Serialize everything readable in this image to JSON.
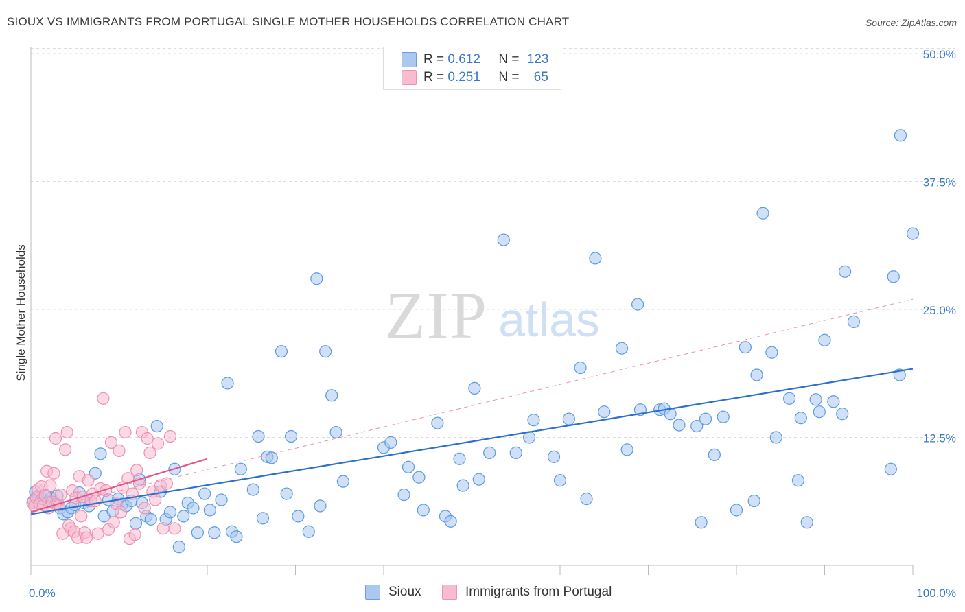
{
  "title": "SIOUX VS IMMIGRANTS FROM PORTUGAL SINGLE MOTHER HOUSEHOLDS CORRELATION CHART",
  "source": "Source: ZipAtlas.com",
  "watermark": {
    "zip": "ZIP",
    "atlas": "atlas"
  },
  "legend": {
    "rows": [
      {
        "r_label": "R = ",
        "r_value": "0.612",
        "n_label": "N = ",
        "n_value": "123",
        "color": "#aac8f0"
      },
      {
        "r_label": "R = ",
        "r_value": "0.251",
        "n_label": "N = ",
        "n_value": "65",
        "color": "#f8bccf"
      }
    ]
  },
  "bottom_legend": [
    {
      "label": "Sioux",
      "color": "#aac8f0"
    },
    {
      "label": "Immigrants from Portugal",
      "color": "#f8bccf"
    }
  ],
  "chart_data": {
    "type": "scatter",
    "title": "SIOUX VS IMMIGRANTS FROM PORTUGAL SINGLE MOTHER HOUSEHOLDS CORRELATION CHART",
    "xlabel": "",
    "ylabel": "Single Mother Households",
    "xlim": [
      0,
      100
    ],
    "ylim": [
      0,
      50
    ],
    "x_tick_labels": [
      "0.0%",
      "100.0%"
    ],
    "y_ticks": [
      12.5,
      25.0,
      37.5,
      50.0
    ],
    "y_tick_labels": [
      "12.5%",
      "25.0%",
      "37.5%",
      "50.0%"
    ],
    "grid": true,
    "legend_position": "top-center",
    "series": [
      {
        "name": "Sioux",
        "color": "#5b9be0",
        "fill": "#aac8f0",
        "trend": {
          "x": [
            0,
            100
          ],
          "y": [
            5.0,
            19.2
          ],
          "style": "solid",
          "color": "#2b6fcf"
        },
        "points": [
          [
            0.3,
            6.3
          ],
          [
            0.5,
            7.2
          ],
          [
            0.8,
            6.7
          ],
          [
            1.0,
            6.0
          ],
          [
            1.3,
            6.5
          ],
          [
            1.6,
            6.9
          ],
          [
            2.0,
            6.2
          ],
          [
            2.3,
            6.6
          ],
          [
            2.8,
            6.0
          ],
          [
            3.0,
            6.8
          ],
          [
            3.3,
            5.6
          ],
          [
            3.7,
            5.0
          ],
          [
            4.2,
            5.2
          ],
          [
            4.6,
            5.6
          ],
          [
            5.0,
            5.9
          ],
          [
            5.5,
            7.1
          ],
          [
            6.0,
            6.1
          ],
          [
            6.6,
            5.8
          ],
          [
            7.3,
            9.0
          ],
          [
            7.9,
            10.9
          ],
          [
            8.3,
            4.8
          ],
          [
            8.8,
            6.4
          ],
          [
            9.3,
            5.3
          ],
          [
            9.9,
            6.5
          ],
          [
            10.4,
            6.0
          ],
          [
            10.8,
            5.8
          ],
          [
            11.4,
            6.3
          ],
          [
            11.9,
            4.1
          ],
          [
            12.3,
            8.4
          ],
          [
            12.6,
            6.1
          ],
          [
            13.1,
            4.8
          ],
          [
            13.6,
            4.5
          ],
          [
            14.3,
            13.6
          ],
          [
            14.7,
            7.2
          ],
          [
            15.3,
            4.5
          ],
          [
            15.8,
            5.2
          ],
          [
            16.3,
            9.4
          ],
          [
            16.8,
            1.8
          ],
          [
            17.3,
            4.8
          ],
          [
            17.8,
            6.1
          ],
          [
            18.4,
            5.6
          ],
          [
            18.9,
            3.2
          ],
          [
            19.7,
            7.0
          ],
          [
            20.3,
            5.4
          ],
          [
            20.8,
            3.2
          ],
          [
            21.6,
            6.4
          ],
          [
            22.3,
            17.8
          ],
          [
            22.8,
            3.3
          ],
          [
            23.3,
            2.8
          ],
          [
            23.8,
            9.4
          ],
          [
            25.2,
            7.4
          ],
          [
            25.8,
            12.6
          ],
          [
            26.3,
            4.6
          ],
          [
            26.8,
            10.6
          ],
          [
            27.3,
            10.5
          ],
          [
            28.4,
            20.9
          ],
          [
            29.0,
            7.0
          ],
          [
            29.5,
            12.6
          ],
          [
            30.3,
            4.8
          ],
          [
            31.5,
            3.3
          ],
          [
            32.4,
            28.0
          ],
          [
            32.8,
            5.8
          ],
          [
            33.4,
            20.9
          ],
          [
            34.1,
            16.6
          ],
          [
            34.6,
            13.0
          ],
          [
            35.4,
            8.2
          ],
          [
            40.0,
            11.5
          ],
          [
            40.8,
            12.0
          ],
          [
            42.3,
            6.9
          ],
          [
            42.8,
            9.6
          ],
          [
            44.0,
            8.6
          ],
          [
            44.5,
            5.4
          ],
          [
            46.1,
            13.9
          ],
          [
            47.0,
            4.8
          ],
          [
            47.6,
            4.3
          ],
          [
            48.6,
            10.4
          ],
          [
            49.0,
            7.8
          ],
          [
            50.3,
            17.3
          ],
          [
            50.8,
            8.4
          ],
          [
            52.0,
            11.0
          ],
          [
            53.6,
            31.8
          ],
          [
            55.0,
            11.0
          ],
          [
            56.5,
            12.5
          ],
          [
            57.0,
            14.2
          ],
          [
            59.3,
            10.6
          ],
          [
            60.0,
            8.3
          ],
          [
            61.0,
            14.3
          ],
          [
            62.3,
            19.3
          ],
          [
            63.0,
            6.5
          ],
          [
            64.0,
            30.0
          ],
          [
            65.0,
            15.0
          ],
          [
            67.0,
            21.2
          ],
          [
            67.6,
            11.3
          ],
          [
            68.8,
            25.5
          ],
          [
            69.1,
            15.2
          ],
          [
            71.3,
            15.2
          ],
          [
            71.8,
            15.3
          ],
          [
            72.5,
            14.8
          ],
          [
            73.5,
            13.7
          ],
          [
            75.5,
            13.6
          ],
          [
            76.0,
            4.2
          ],
          [
            76.5,
            14.3
          ],
          [
            77.5,
            10.8
          ],
          [
            78.5,
            14.5
          ],
          [
            80.0,
            5.4
          ],
          [
            81.0,
            21.3
          ],
          [
            82.0,
            6.3
          ],
          [
            82.3,
            18.6
          ],
          [
            83.0,
            34.4
          ],
          [
            84.0,
            20.8
          ],
          [
            84.5,
            12.5
          ],
          [
            86.0,
            16.3
          ],
          [
            87.0,
            8.3
          ],
          [
            87.3,
            14.4
          ],
          [
            88.0,
            4.2
          ],
          [
            89.0,
            16.2
          ],
          [
            89.4,
            15.0
          ],
          [
            90.0,
            22.0
          ],
          [
            91.0,
            16.0
          ],
          [
            92.0,
            14.8
          ],
          [
            92.3,
            28.7
          ],
          [
            93.3,
            23.8
          ],
          [
            97.5,
            9.4
          ],
          [
            97.8,
            28.2
          ],
          [
            98.5,
            18.6
          ],
          [
            98.6,
            42.0
          ],
          [
            100.0,
            32.4
          ]
        ]
      },
      {
        "name": "Immigrants from Portugal",
        "color": "#ee8fb0",
        "fill": "#f8bccf",
        "trend": {
          "x": [
            0,
            20
          ],
          "y": [
            5.2,
            10.4
          ],
          "style": "solid",
          "color": "#e0588a"
        },
        "trend_extended": {
          "x": [
            0,
            100
          ],
          "y": [
            5.2,
            26.0
          ],
          "style": "dashed",
          "color": "#e98fae"
        },
        "points": [
          [
            0.2,
            6.1
          ],
          [
            0.4,
            5.8
          ],
          [
            0.6,
            6.6
          ],
          [
            0.8,
            7.4
          ],
          [
            1.0,
            6.0
          ],
          [
            1.2,
            7.7
          ],
          [
            1.4,
            5.9
          ],
          [
            1.6,
            6.8
          ],
          [
            1.8,
            9.2
          ],
          [
            2.0,
            5.6
          ],
          [
            2.2,
            7.8
          ],
          [
            2.4,
            6.2
          ],
          [
            2.6,
            9.0
          ],
          [
            2.8,
            12.4
          ],
          [
            3.0,
            6.0
          ],
          [
            3.2,
            5.9
          ],
          [
            3.4,
            6.9
          ],
          [
            3.6,
            3.1
          ],
          [
            3.9,
            11.3
          ],
          [
            4.1,
            13.0
          ],
          [
            4.3,
            3.9
          ],
          [
            4.5,
            3.6
          ],
          [
            4.7,
            7.3
          ],
          [
            4.9,
            3.3
          ],
          [
            5.1,
            6.6
          ],
          [
            5.3,
            2.7
          ],
          [
            5.5,
            8.7
          ],
          [
            5.7,
            4.8
          ],
          [
            5.9,
            6.7
          ],
          [
            6.1,
            3.2
          ],
          [
            6.3,
            2.7
          ],
          [
            6.5,
            8.3
          ],
          [
            6.8,
            6.3
          ],
          [
            7.0,
            7.0
          ],
          [
            7.3,
            6.3
          ],
          [
            7.6,
            3.1
          ],
          [
            7.9,
            7.5
          ],
          [
            8.2,
            16.3
          ],
          [
            8.5,
            7.3
          ],
          [
            8.8,
            3.5
          ],
          [
            9.1,
            12.0
          ],
          [
            9.4,
            4.2
          ],
          [
            9.7,
            6.0
          ],
          [
            10.0,
            11.2
          ],
          [
            10.2,
            5.2
          ],
          [
            10.4,
            7.6
          ],
          [
            10.7,
            13.0
          ],
          [
            11.0,
            8.5
          ],
          [
            11.2,
            2.6
          ],
          [
            11.5,
            7.0
          ],
          [
            11.8,
            3.0
          ],
          [
            12.0,
            9.3
          ],
          [
            12.3,
            8.0
          ],
          [
            12.6,
            13.0
          ],
          [
            12.9,
            5.6
          ],
          [
            13.2,
            12.4
          ],
          [
            13.5,
            11.0
          ],
          [
            13.8,
            7.2
          ],
          [
            14.1,
            6.4
          ],
          [
            14.4,
            11.9
          ],
          [
            14.7,
            7.8
          ],
          [
            15.0,
            3.6
          ],
          [
            15.4,
            8.0
          ],
          [
            15.8,
            12.6
          ],
          [
            16.3,
            3.6
          ]
        ]
      }
    ]
  }
}
